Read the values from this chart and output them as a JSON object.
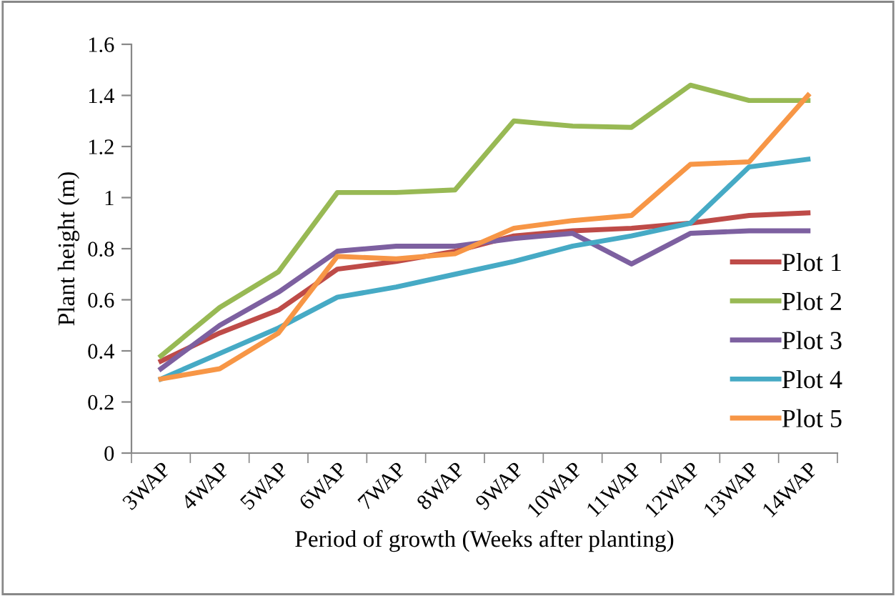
{
  "chart_data": {
    "type": "line",
    "xlabel": "Period of growth (Weeks after planting)",
    "ylabel": "Plant height (m)",
    "categories": [
      "3WAP",
      "4WAP",
      "5WAP",
      "6WAP",
      "7WAP",
      "8WAP",
      "9WAP",
      "10WAP",
      "11WAP",
      "12WAP",
      "13WAP",
      "14WAP"
    ],
    "series": [
      {
        "name": "Plot 1",
        "color": "#be4b48",
        "values": [
          0.36,
          0.47,
          0.56,
          0.72,
          0.75,
          0.79,
          0.85,
          0.87,
          0.88,
          0.9,
          0.93,
          0.94
        ]
      },
      {
        "name": "Plot 2",
        "color": "#98b954",
        "values": [
          0.38,
          0.57,
          0.71,
          1.02,
          1.02,
          1.03,
          1.3,
          1.28,
          1.275,
          1.44,
          1.38,
          1.38
        ]
      },
      {
        "name": "Plot 3",
        "color": "#7d60a0",
        "values": [
          0.33,
          0.5,
          0.63,
          0.79,
          0.81,
          0.81,
          0.84,
          0.86,
          0.74,
          0.86,
          0.87,
          0.87
        ]
      },
      {
        "name": "Plot 4",
        "color": "#46aac5",
        "values": [
          0.29,
          0.39,
          0.49,
          0.61,
          0.65,
          0.7,
          0.75,
          0.81,
          0.85,
          0.9,
          1.12,
          1.15
        ]
      },
      {
        "name": "Plot 5",
        "color": "#f79646",
        "values": [
          0.29,
          0.33,
          0.47,
          0.77,
          0.76,
          0.78,
          0.88,
          0.91,
          0.93,
          1.13,
          1.14,
          1.4
        ]
      }
    ],
    "ylim": [
      0,
      1.6
    ],
    "yticks": [
      0,
      0.2,
      0.4,
      0.6,
      0.8,
      1,
      1.2,
      1.4,
      1.6
    ],
    "grid": false,
    "legend": "right",
    "marker": "none",
    "line_style": "solid"
  }
}
